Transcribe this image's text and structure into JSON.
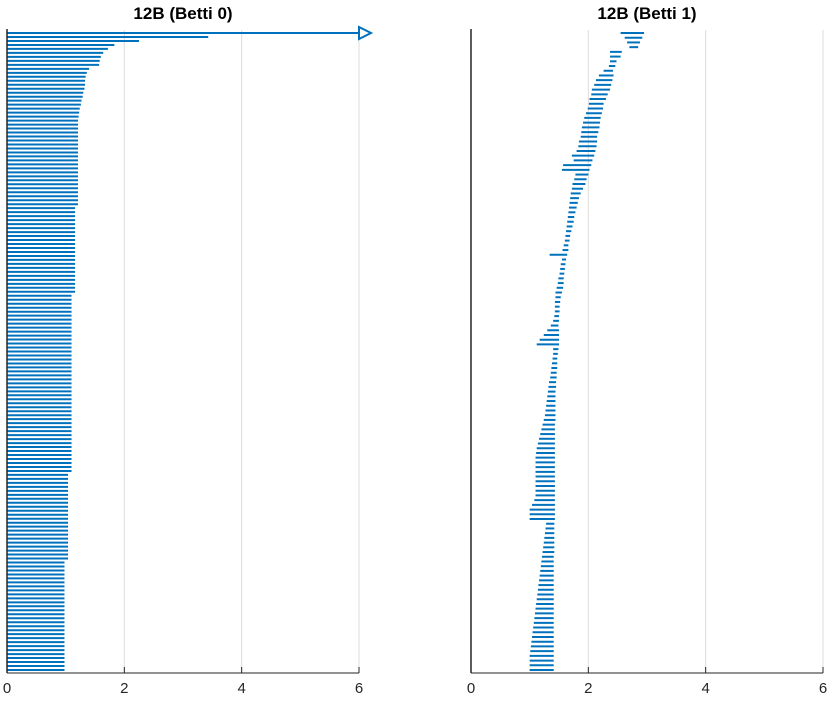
{
  "chart_data": [
    {
      "type": "barcode",
      "title": "12B (Betti 0)",
      "xlim": [
        0,
        6
      ],
      "xticks": [
        0,
        2,
        4,
        6
      ],
      "grid": "x",
      "infinite_bar": {
        "birth": 0,
        "arrow": true
      },
      "finite_bar_count": 160,
      "deaths_sorted_desc": [
        3.43,
        2.25,
        1.83,
        1.72,
        1.64,
        1.6,
        1.58,
        1.57,
        1.4,
        1.36,
        1.34,
        1.33,
        1.33,
        1.32,
        1.3,
        1.29,
        1.27,
        1.26,
        1.24,
        1.23,
        1.22
      ],
      "death_tiers": [
        {
          "count": 22,
          "death": 1.21
        },
        {
          "count": 22,
          "death": 1.16
        },
        {
          "count": 45,
          "death": 1.1
        },
        {
          "count": 22,
          "death": 1.04
        },
        {
          "count": 28,
          "death": 0.98
        }
      ],
      "color": "#0072BD"
    },
    {
      "type": "barcode",
      "title": "12B (Betti 1)",
      "xlim": [
        0,
        6
      ],
      "xticks": [
        0,
        2,
        4,
        6
      ],
      "grid": "x",
      "bars_top_to_bottom": [
        [
          2.55,
          2.95
        ],
        [
          2.62,
          2.92
        ],
        [
          2.66,
          2.88
        ],
        [
          2.7,
          2.85
        ],
        [
          2.37,
          2.57
        ],
        [
          2.37,
          2.55
        ],
        [
          2.37,
          2.48
        ],
        [
          2.35,
          2.46
        ],
        [
          2.26,
          2.42
        ],
        [
          2.18,
          2.43
        ],
        [
          2.13,
          2.41
        ],
        [
          2.1,
          2.39
        ],
        [
          2.06,
          2.37
        ],
        [
          2.05,
          2.33
        ],
        [
          2.02,
          2.3
        ],
        [
          2.01,
          2.26
        ],
        [
          1.99,
          2.25
        ],
        [
          1.96,
          2.23
        ],
        [
          1.93,
          2.21
        ],
        [
          1.91,
          2.2
        ],
        [
          1.89,
          2.19
        ],
        [
          1.88,
          2.17
        ],
        [
          1.87,
          2.15
        ],
        [
          1.84,
          2.15
        ],
        [
          1.83,
          2.14
        ],
        [
          1.8,
          2.12
        ],
        [
          1.72,
          2.1
        ],
        [
          1.75,
          2.07
        ],
        [
          1.57,
          2.05
        ],
        [
          1.55,
          2.02
        ],
        [
          1.78,
          2.0
        ],
        [
          1.76,
          1.97
        ],
        [
          1.73,
          1.95
        ],
        [
          1.72,
          1.91
        ],
        [
          1.7,
          1.87
        ],
        [
          1.69,
          1.84
        ],
        [
          1.68,
          1.82
        ],
        [
          1.67,
          1.8
        ],
        [
          1.66,
          1.78
        ],
        [
          1.65,
          1.76
        ],
        [
          1.64,
          1.75
        ],
        [
          1.63,
          1.73
        ],
        [
          1.62,
          1.71
        ],
        [
          1.61,
          1.69
        ],
        [
          1.6,
          1.68
        ],
        [
          1.58,
          1.66
        ],
        [
          1.56,
          1.66
        ],
        [
          1.34,
          1.64
        ],
        [
          1.55,
          1.62
        ],
        [
          1.53,
          1.61
        ],
        [
          1.52,
          1.6
        ],
        [
          1.51,
          1.59
        ],
        [
          1.49,
          1.58
        ],
        [
          1.48,
          1.58
        ],
        [
          1.46,
          1.57
        ],
        [
          1.44,
          1.55
        ],
        [
          1.44,
          1.53
        ],
        [
          1.43,
          1.52
        ],
        [
          1.43,
          1.51
        ],
        [
          1.43,
          1.51
        ],
        [
          1.42,
          1.5
        ],
        [
          1.4,
          1.5
        ],
        [
          1.36,
          1.49
        ],
        [
          1.3,
          1.5
        ],
        [
          1.24,
          1.5
        ],
        [
          1.17,
          1.5
        ],
        [
          1.12,
          1.5
        ],
        [
          1.4,
          1.49
        ],
        [
          1.4,
          1.48
        ],
        [
          1.39,
          1.47
        ],
        [
          1.38,
          1.47
        ],
        [
          1.37,
          1.47
        ],
        [
          1.36,
          1.46
        ],
        [
          1.35,
          1.46
        ],
        [
          1.33,
          1.45
        ],
        [
          1.32,
          1.45
        ],
        [
          1.31,
          1.44
        ],
        [
          1.3,
          1.44
        ],
        [
          1.29,
          1.44
        ],
        [
          1.28,
          1.44
        ],
        [
          1.27,
          1.44
        ],
        [
          1.26,
          1.44
        ],
        [
          1.24,
          1.44
        ],
        [
          1.22,
          1.43
        ],
        [
          1.2,
          1.43
        ],
        [
          1.18,
          1.43
        ],
        [
          1.16,
          1.43
        ],
        [
          1.14,
          1.43
        ],
        [
          1.12,
          1.43
        ],
        [
          1.11,
          1.43
        ],
        [
          1.1,
          1.43
        ],
        [
          1.1,
          1.43
        ],
        [
          1.1,
          1.43
        ],
        [
          1.1,
          1.43
        ],
        [
          1.1,
          1.43
        ],
        [
          1.1,
          1.43
        ],
        [
          1.1,
          1.43
        ],
        [
          1.1,
          1.43
        ],
        [
          1.1,
          1.43
        ],
        [
          1.08,
          1.43
        ],
        [
          1.04,
          1.43
        ],
        [
          1.0,
          1.43
        ],
        [
          1.0,
          1.43
        ],
        [
          1.0,
          1.43
        ],
        [
          1.28,
          1.42
        ],
        [
          1.27,
          1.42
        ],
        [
          1.26,
          1.42
        ],
        [
          1.25,
          1.42
        ],
        [
          1.24,
          1.42
        ],
        [
          1.23,
          1.42
        ],
        [
          1.22,
          1.42
        ],
        [
          1.21,
          1.41
        ],
        [
          1.2,
          1.41
        ],
        [
          1.19,
          1.41
        ],
        [
          1.18,
          1.41
        ],
        [
          1.17,
          1.41
        ],
        [
          1.16,
          1.41
        ],
        [
          1.15,
          1.41
        ],
        [
          1.14,
          1.41
        ],
        [
          1.13,
          1.41
        ],
        [
          1.12,
          1.41
        ],
        [
          1.11,
          1.41
        ],
        [
          1.1,
          1.41
        ],
        [
          1.09,
          1.41
        ],
        [
          1.08,
          1.41
        ],
        [
          1.07,
          1.41
        ],
        [
          1.06,
          1.41
        ],
        [
          1.05,
          1.41
        ],
        [
          1.04,
          1.41
        ],
        [
          1.03,
          1.41
        ],
        [
          1.02,
          1.41
        ],
        [
          1.01,
          1.41
        ],
        [
          1.0,
          1.41
        ],
        [
          1.0,
          1.41
        ],
        [
          1.0,
          1.41
        ],
        [
          1.0,
          1.41
        ]
      ],
      "color": "#0072BD"
    }
  ]
}
